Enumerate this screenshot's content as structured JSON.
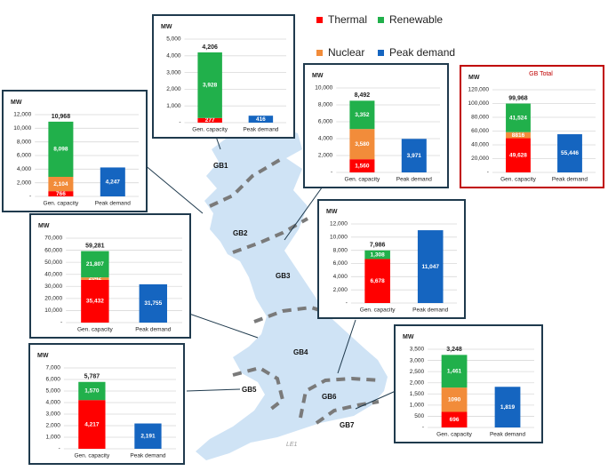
{
  "colors": {
    "thermal": "#ff0000",
    "nuclear": "#f28c3a",
    "renewable": "#21b04b",
    "peak": "#1565c0",
    "map_fill": "#cfe3f5",
    "boundary": "#7a7a7a"
  },
  "legend": [
    {
      "label": "Thermal",
      "color": "#ff0000"
    },
    {
      "label": "Renewable",
      "color": "#21b04b"
    },
    {
      "label": "Nuclear",
      "color": "#f28c3a"
    },
    {
      "label": "Peak demand",
      "color": "#1565c0"
    }
  ],
  "regions": [
    "GB1",
    "GB2",
    "GB3",
    "GB4",
    "GB5",
    "GB6",
    "GB7"
  ],
  "footnote": "LE1",
  "chart_data": [
    {
      "id": "GB1",
      "type": "bar",
      "stacked": true,
      "ylabel": "MW",
      "title": "",
      "categories": [
        "Gen. capacity",
        "Peak demand"
      ],
      "ylim": [
        0,
        5000
      ],
      "yticks": [
        "-",
        "1,000",
        "2,000",
        "3,000",
        "4,000",
        "5,000"
      ],
      "series": [
        {
          "key": "thermal",
          "values": [
            277,
            0
          ],
          "labels": [
            "277",
            ""
          ]
        },
        {
          "key": "nuclear",
          "values": [
            0,
            0
          ],
          "labels": [
            "",
            ""
          ]
        },
        {
          "key": "renewable",
          "values": [
            3928,
            0
          ],
          "labels": [
            "3,928",
            ""
          ]
        },
        {
          "key": "peak",
          "values": [
            0,
            416
          ],
          "labels": [
            "",
            "416"
          ]
        }
      ],
      "total_label": "4,206"
    },
    {
      "id": "GB2",
      "type": "bar",
      "stacked": true,
      "ylabel": "MW",
      "title": "",
      "categories": [
        "Gen. capacity",
        "Peak demand"
      ],
      "ylim": [
        0,
        12000
      ],
      "yticks": [
        "-",
        "2,000",
        "4,000",
        "6,000",
        "8,000",
        "10,000",
        "12,000"
      ],
      "series": [
        {
          "key": "thermal",
          "values": [
            766,
            0
          ],
          "labels": [
            "766",
            ""
          ]
        },
        {
          "key": "nuclear",
          "values": [
            2104,
            0
          ],
          "labels": [
            "2,104",
            ""
          ]
        },
        {
          "key": "renewable",
          "values": [
            8098,
            0
          ],
          "labels": [
            "8,098",
            ""
          ]
        },
        {
          "key": "peak",
          "values": [
            0,
            4247
          ],
          "labels": [
            "",
            "4,247"
          ]
        }
      ],
      "total_label": "10,968"
    },
    {
      "id": "GB3",
      "type": "bar",
      "stacked": true,
      "ylabel": "MW",
      "title": "",
      "categories": [
        "Gen. capacity",
        "Peak demand"
      ],
      "ylim": [
        0,
        10000
      ],
      "yticks": [
        "-",
        "2,000",
        "4,000",
        "6,000",
        "8,000",
        "10,000"
      ],
      "series": [
        {
          "key": "thermal",
          "values": [
            1560,
            0
          ],
          "labels": [
            "1,560",
            ""
          ]
        },
        {
          "key": "nuclear",
          "values": [
            3580,
            0
          ],
          "labels": [
            "3,580",
            ""
          ]
        },
        {
          "key": "renewable",
          "values": [
            3352,
            0
          ],
          "labels": [
            "3,352",
            ""
          ]
        },
        {
          "key": "peak",
          "values": [
            0,
            3971
          ],
          "labels": [
            "",
            "3,971"
          ]
        }
      ],
      "total_label": "8,492"
    },
    {
      "id": "GBT",
      "type": "bar",
      "stacked": true,
      "ylabel": "MW",
      "title": "GB Total",
      "categories": [
        "Gen. capacity",
        "Peak demand"
      ],
      "ylim": [
        0,
        120000
      ],
      "yticks": [
        "-",
        "20,000",
        "40,000",
        "60,000",
        "80,000",
        "100,000",
        "120,000"
      ],
      "series": [
        {
          "key": "thermal",
          "values": [
            49628,
            0
          ],
          "labels": [
            "49,628",
            ""
          ]
        },
        {
          "key": "nuclear",
          "values": [
            8816,
            0
          ],
          "labels": [
            "8816",
            ""
          ]
        },
        {
          "key": "renewable",
          "values": [
            41524,
            0
          ],
          "labels": [
            "41,524",
            ""
          ]
        },
        {
          "key": "peak",
          "values": [
            0,
            55446
          ],
          "labels": [
            "",
            "55,446"
          ]
        }
      ],
      "total_label": "99,968"
    },
    {
      "id": "GB4",
      "type": "bar",
      "stacked": true,
      "ylabel": "MW",
      "title": "",
      "categories": [
        "Gen. capacity",
        "Peak demand"
      ],
      "ylim": [
        0,
        70000
      ],
      "yticks": [
        "-",
        "10,000",
        "20,000",
        "30,000",
        "40,000",
        "50,000",
        "60,000",
        "70,000"
      ],
      "series": [
        {
          "key": "thermal",
          "values": [
            35432,
            0
          ],
          "labels": [
            "35,432",
            ""
          ]
        },
        {
          "key": "nuclear",
          "values": [
            2042,
            0
          ],
          "labels": [
            "2042",
            ""
          ]
        },
        {
          "key": "renewable",
          "values": [
            21807,
            0
          ],
          "labels": [
            "21,807",
            ""
          ]
        },
        {
          "key": "peak",
          "values": [
            0,
            31755
          ],
          "labels": [
            "",
            "31,755"
          ]
        }
      ],
      "total_label": "59,281"
    },
    {
      "id": "GB6",
      "type": "bar",
      "stacked": true,
      "ylabel": "MW",
      "title": "",
      "categories": [
        "Gen. capacity",
        "Peak demand"
      ],
      "ylim": [
        0,
        12000
      ],
      "yticks": [
        "-",
        "2,000",
        "4,000",
        "6,000",
        "8,000",
        "10,000",
        "12,000"
      ],
      "series": [
        {
          "key": "thermal",
          "values": [
            6678,
            0
          ],
          "labels": [
            "6,678",
            ""
          ]
        },
        {
          "key": "nuclear",
          "values": [
            0,
            0
          ],
          "labels": [
            "",
            ""
          ]
        },
        {
          "key": "renewable",
          "values": [
            1308,
            0
          ],
          "labels": [
            "1,308",
            ""
          ]
        },
        {
          "key": "peak",
          "values": [
            0,
            11047
          ],
          "labels": [
            "",
            "11,047"
          ]
        }
      ],
      "total_label": "7,986"
    },
    {
      "id": "GB5",
      "type": "bar",
      "stacked": true,
      "ylabel": "MW",
      "title": "",
      "categories": [
        "Gen. capacity",
        "Peak demand"
      ],
      "ylim": [
        0,
        7000
      ],
      "yticks": [
        "-",
        "1,000",
        "2,000",
        "3,000",
        "4,000",
        "5,000",
        "6,000",
        "7,000"
      ],
      "series": [
        {
          "key": "thermal",
          "values": [
            4217,
            0
          ],
          "labels": [
            "4,217",
            ""
          ]
        },
        {
          "key": "nuclear",
          "values": [
            0,
            0
          ],
          "labels": [
            "",
            ""
          ]
        },
        {
          "key": "renewable",
          "values": [
            1570,
            0
          ],
          "labels": [
            "1,570",
            ""
          ]
        },
        {
          "key": "peak",
          "values": [
            0,
            2191
          ],
          "labels": [
            "",
            "2,191"
          ]
        }
      ],
      "total_label": "5,787"
    },
    {
      "id": "GB7",
      "type": "bar",
      "stacked": true,
      "ylabel": "MW",
      "title": "",
      "categories": [
        "Gen. capacity",
        "Peak demand"
      ],
      "ylim": [
        0,
        3500
      ],
      "yticks": [
        "-",
        "500",
        "1,000",
        "1,500",
        "2,000",
        "2,500",
        "3,000",
        "3,500"
      ],
      "series": [
        {
          "key": "thermal",
          "values": [
            696,
            0
          ],
          "labels": [
            "696",
            ""
          ]
        },
        {
          "key": "nuclear",
          "values": [
            1090,
            0
          ],
          "labels": [
            "1090",
            ""
          ]
        },
        {
          "key": "renewable",
          "values": [
            1461,
            0
          ],
          "labels": [
            "1,461",
            ""
          ]
        },
        {
          "key": "peak",
          "values": [
            0,
            1819
          ],
          "labels": [
            "",
            "1,819"
          ]
        }
      ],
      "total_label": "3,248"
    }
  ]
}
